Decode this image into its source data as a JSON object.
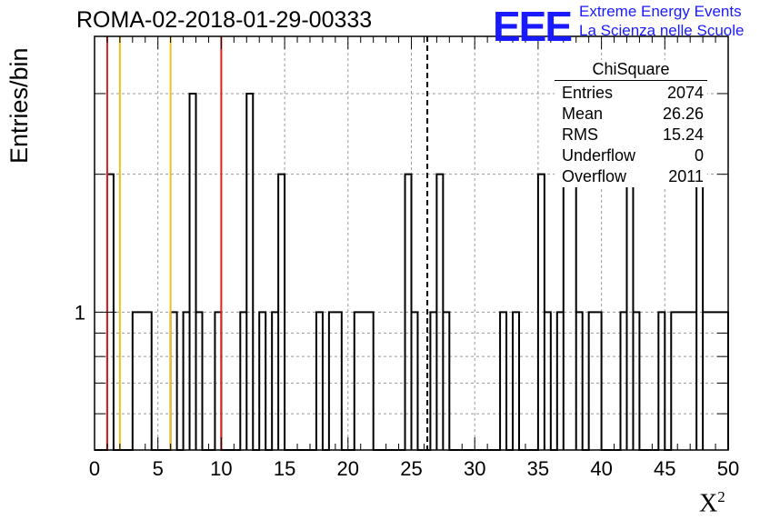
{
  "chart_data": {
    "type": "histogram",
    "title": "ROMA-02-2018-01-29-00333",
    "xlabel": "X",
    "xlabel_superscript": "2",
    "ylabel": "Entries/bin",
    "xlim": [
      0,
      50
    ],
    "ylim_log": [
      0.5,
      4.0
    ],
    "y_scale": "log",
    "grid": true,
    "bin_width": 0.5,
    "bins": [
      {
        "x0": 1.0,
        "x1": 1.5,
        "count": 2
      },
      {
        "x0": 3.0,
        "x1": 4.5,
        "count": 1
      },
      {
        "x0": 6.0,
        "x1": 6.5,
        "count": 1
      },
      {
        "x0": 7.0,
        "x1": 7.5,
        "count": 1
      },
      {
        "x0": 7.5,
        "x1": 8.0,
        "count": 3
      },
      {
        "x0": 8.0,
        "x1": 8.5,
        "count": 1
      },
      {
        "x0": 9.5,
        "x1": 10.0,
        "count": 1
      },
      {
        "x0": 11.5,
        "x1": 12.0,
        "count": 1
      },
      {
        "x0": 12.0,
        "x1": 12.5,
        "count": 3
      },
      {
        "x0": 13.0,
        "x1": 13.5,
        "count": 1
      },
      {
        "x0": 14.0,
        "x1": 14.5,
        "count": 1
      },
      {
        "x0": 14.5,
        "x1": 15.0,
        "count": 2
      },
      {
        "x0": 17.5,
        "x1": 18.0,
        "count": 1
      },
      {
        "x0": 18.5,
        "x1": 19.5,
        "count": 1
      },
      {
        "x0": 20.5,
        "x1": 22.0,
        "count": 1
      },
      {
        "x0": 24.5,
        "x1": 25.0,
        "count": 2
      },
      {
        "x0": 25.0,
        "x1": 25.5,
        "count": 1
      },
      {
        "x0": 26.5,
        "x1": 27.0,
        "count": 1
      },
      {
        "x0": 27.0,
        "x1": 27.5,
        "count": 2
      },
      {
        "x0": 27.5,
        "x1": 28.0,
        "count": 1
      },
      {
        "x0": 32.0,
        "x1": 32.5,
        "count": 1
      },
      {
        "x0": 33.0,
        "x1": 33.5,
        "count": 1
      },
      {
        "x0": 35.0,
        "x1": 35.5,
        "count": 2
      },
      {
        "x0": 35.5,
        "x1": 36.0,
        "count": 1
      },
      {
        "x0": 36.5,
        "x1": 37.0,
        "count": 1
      },
      {
        "x0": 37.0,
        "x1": 38.0,
        "count": 2
      },
      {
        "x0": 38.0,
        "x1": 38.5,
        "count": 1
      },
      {
        "x0": 39.0,
        "x1": 40.0,
        "count": 1
      },
      {
        "x0": 41.5,
        "x1": 42.0,
        "count": 1
      },
      {
        "x0": 42.0,
        "x1": 42.5,
        "count": 2
      },
      {
        "x0": 42.5,
        "x1": 43.0,
        "count": 1
      },
      {
        "x0": 44.5,
        "x1": 45.0,
        "count": 1
      },
      {
        "x0": 45.5,
        "x1": 47.5,
        "count": 1
      },
      {
        "x0": 47.5,
        "x1": 48.0,
        "count": 2
      },
      {
        "x0": 48.0,
        "x1": 50.0,
        "count": 1
      }
    ],
    "vertical_lines": [
      {
        "x": 1.0,
        "color": "#dd2020",
        "style": "solid"
      },
      {
        "x": 2.0,
        "color": "#f0c020",
        "style": "solid"
      },
      {
        "x": 6.0,
        "color": "#f0c020",
        "style": "solid"
      },
      {
        "x": 10.0,
        "color": "#dd2020",
        "style": "solid"
      },
      {
        "x": 26.26,
        "color": "#000000",
        "style": "dashed"
      }
    ],
    "xticks": [
      0,
      5,
      10,
      15,
      20,
      25,
      30,
      35,
      40,
      45,
      50
    ],
    "xtick_labels": [
      "0",
      "5",
      "10",
      "15",
      "20",
      "25",
      "30",
      "35",
      "40",
      "45",
      "50"
    ],
    "yticks_labeled": [
      {
        "value": 1,
        "label": "1"
      }
    ],
    "stats_box": {
      "title": "ChiSquare",
      "rows": [
        {
          "label": "Entries",
          "value": "2074"
        },
        {
          "label": "Mean",
          "value": "26.26"
        },
        {
          "label": "RMS",
          "value": "15.24"
        },
        {
          "label": "Underflow",
          "value": "0"
        },
        {
          "label": "Overflow",
          "value": "2011"
        }
      ]
    }
  },
  "logo": {
    "mark": "EEE",
    "line1": "Extreme Energy Events",
    "line2": "La Scienza nelle Scuole",
    "color": "#1a1aff"
  }
}
